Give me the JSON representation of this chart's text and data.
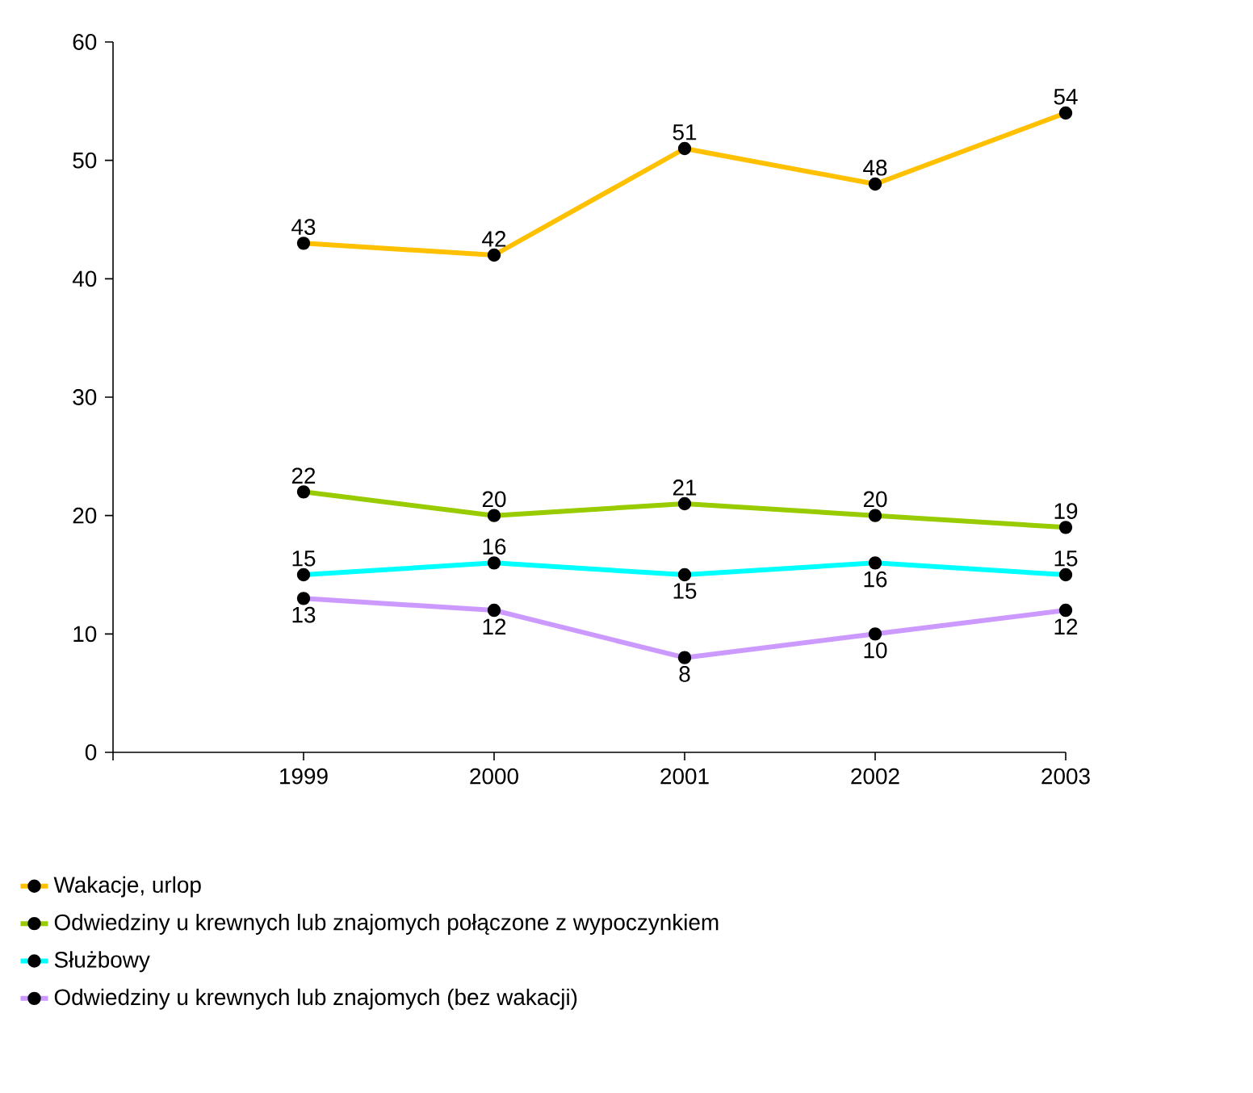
{
  "chart_data": {
    "type": "line",
    "categories": [
      null,
      "1999",
      "2000",
      "2001",
      "2002",
      "2003"
    ],
    "series": [
      {
        "name": "Wakacje, urlop",
        "color": "#ffc000",
        "values": [
          null,
          43,
          42,
          51,
          48,
          54
        ]
      },
      {
        "name": "Odwiedziny u krewnych lub znajomych połączone z wypoczynkiem",
        "color": "#99cc00",
        "values": [
          null,
          22,
          20,
          21,
          20,
          19
        ]
      },
      {
        "name": "Służbowy",
        "color": "#00ffff",
        "values": [
          null,
          15,
          16,
          15,
          16,
          15
        ]
      },
      {
        "name": "Odwiedziny u krewnych lub znajomych (bez wakacji)",
        "color": "#cc99ff",
        "values": [
          null,
          13,
          12,
          8,
          10,
          12
        ]
      }
    ],
    "ylim": [
      0,
      60
    ],
    "yticks": [
      0,
      10,
      20,
      30,
      40,
      50,
      60
    ],
    "data_labels": true,
    "legend": "bottom",
    "marker": "circle",
    "line_style": "solid",
    "grid": false
  }
}
